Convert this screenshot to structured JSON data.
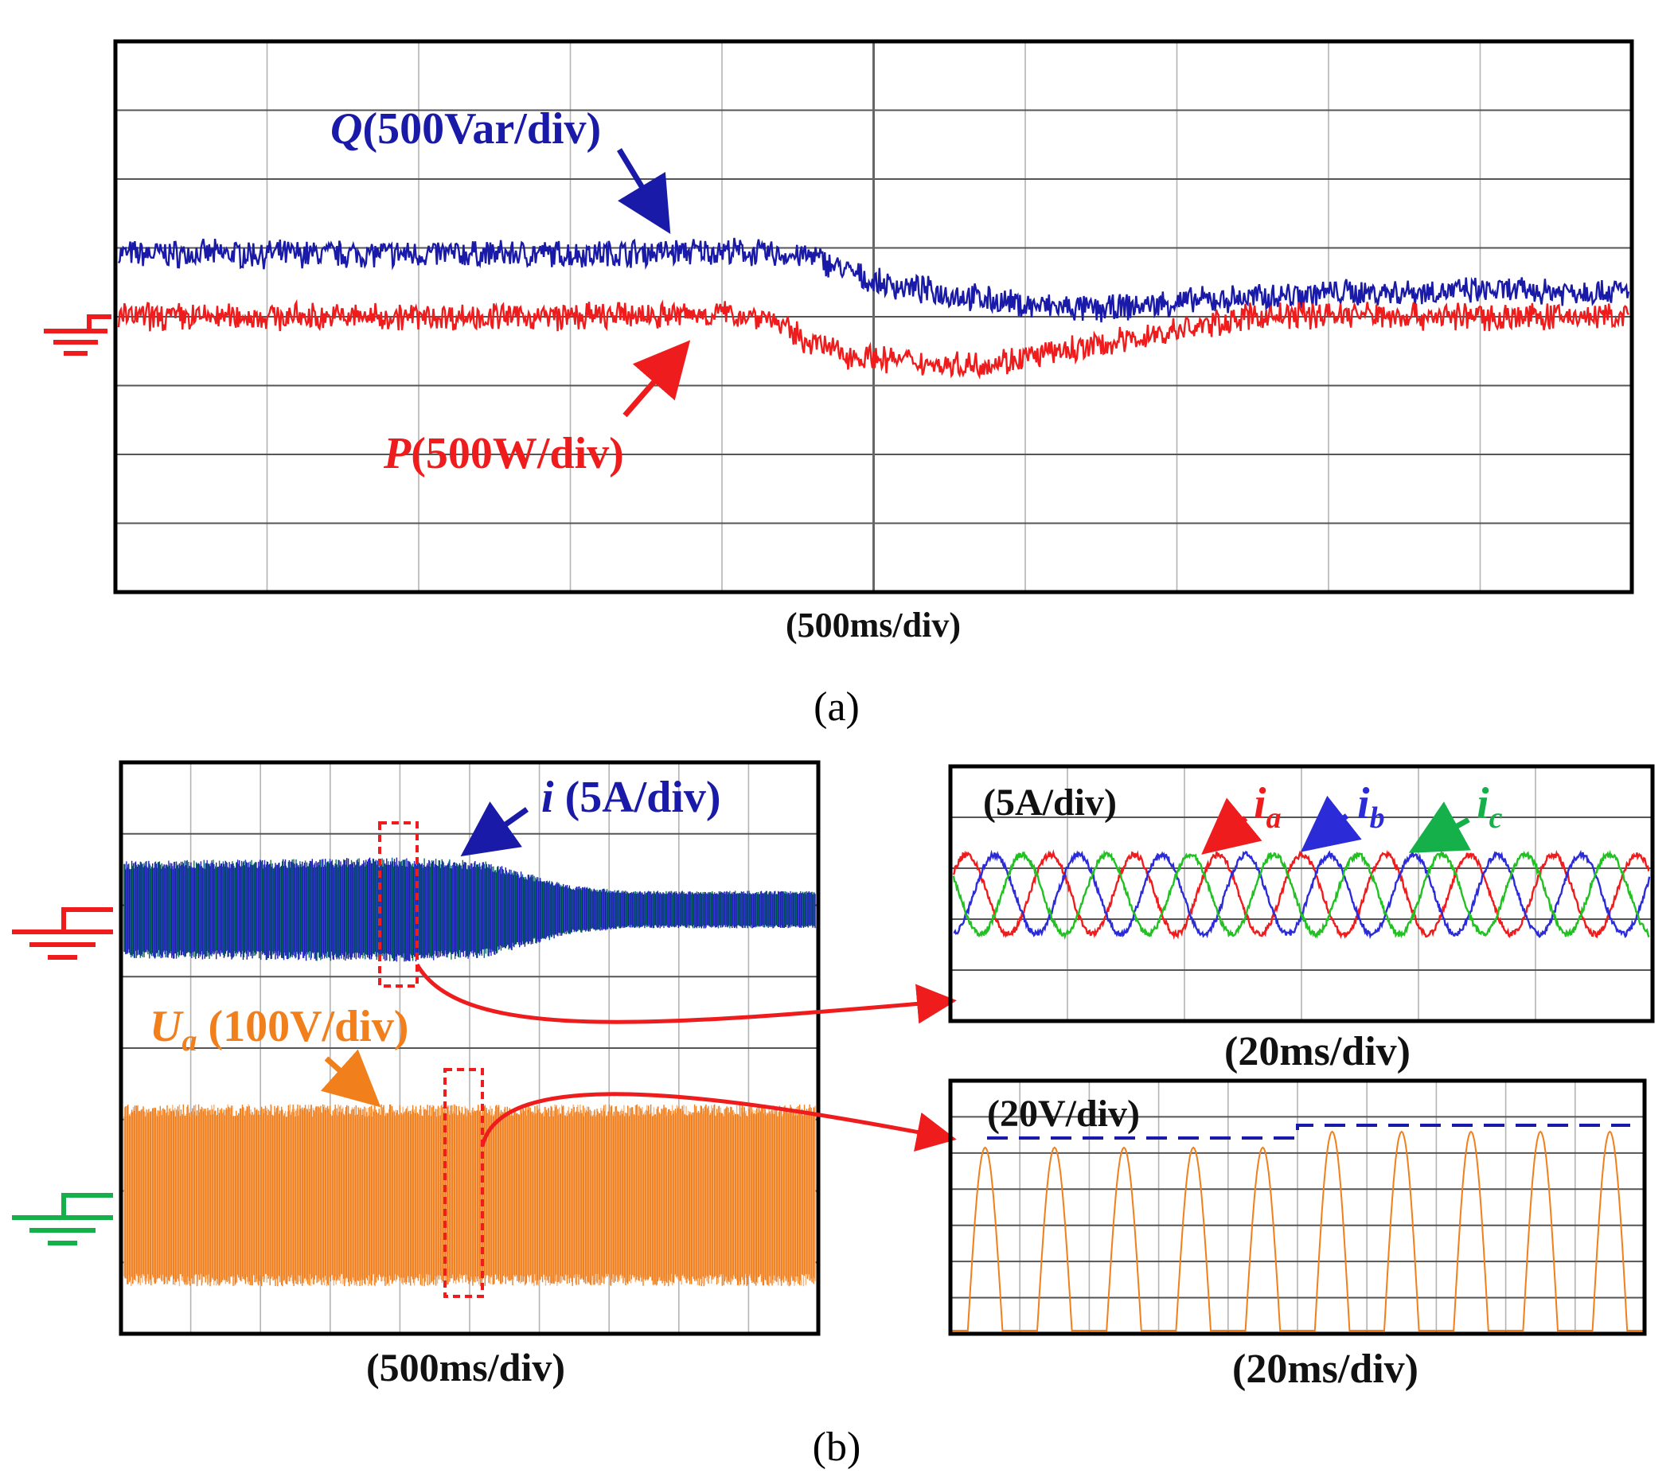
{
  "colors": {
    "blue": "#1a1aa8",
    "red": "#ee1c1c",
    "green": "#16b04a",
    "orange": "#f07f1c",
    "grid": "#b4b4b4",
    "frame": "#000000"
  },
  "panel_a": {
    "caption": "(a)",
    "time_label": "(500ms/div)",
    "q_label": {
      "symbol": "Q",
      "unit": "(500Var/div)"
    },
    "p_label": {
      "symbol": "P",
      "unit": "(500W/div)"
    }
  },
  "panel_b": {
    "caption": "(b)",
    "left": {
      "time_label": "(500ms/div)",
      "i_label": {
        "symbol": "i",
        "unit": " (5A/div)"
      },
      "u_label": {
        "symbol": "U",
        "sub": "a",
        "unit": " (100V/div)"
      }
    },
    "zoom_current": {
      "scale_label": "(5A/div)",
      "time_label": "(20ms/div)",
      "phase_labels": [
        {
          "symbol": "i",
          "sub": "a",
          "color": "#ee1c1c"
        },
        {
          "symbol": "i",
          "sub": "b",
          "color": "#2b2bd8"
        },
        {
          "symbol": "i",
          "sub": "c",
          "color": "#16b04a"
        }
      ]
    },
    "zoom_voltage": {
      "scale_label": "(20V/div)",
      "time_label": "(20ms/div)"
    }
  },
  "chart_data": [
    {
      "type": "line",
      "panel": "a",
      "x_unit": "div (500ms/div)",
      "xlim": [
        0,
        10
      ],
      "ylim": [
        -4,
        4
      ],
      "series": [
        {
          "name": "Q",
          "x": [
            0,
            1,
            2,
            3,
            4,
            4.3,
            4.6,
            5.0,
            5.5,
            6.0,
            6.5,
            7.0,
            8.0,
            9.0,
            10.0
          ],
          "y": [
            1.1,
            1.1,
            1.1,
            1.1,
            1.15,
            1.1,
            1.05,
            0.6,
            0.4,
            0.2,
            0.12,
            0.25,
            0.42,
            0.45,
            0.45
          ]
        },
        {
          "name": "P",
          "x": [
            0,
            1,
            2,
            3,
            4,
            4.3,
            4.5,
            4.8,
            5.0,
            5.5,
            5.8,
            6.0,
            6.5,
            7.0,
            7.5,
            8.0,
            9.0,
            10.0
          ],
          "y": [
            0.0,
            0.0,
            0.0,
            0.0,
            0.05,
            0.0,
            -0.35,
            -0.65,
            -0.72,
            -0.85,
            -0.8,
            -0.72,
            -0.5,
            -0.25,
            0.0,
            0.05,
            0.0,
            0.0
          ]
        }
      ]
    },
    {
      "type": "area",
      "panel": "b-left",
      "x_unit": "div (500ms/div)",
      "xlim": [
        0,
        10
      ],
      "series": [
        {
          "name": "i",
          "envelope_x": [
            0,
            4,
            5.2,
            6.5,
            7.3,
            10
          ],
          "envelope_amplitude_div": [
            0.65,
            0.7,
            0.65,
            0.32,
            0.25,
            0.25
          ]
        },
        {
          "name": "Ua",
          "envelope_x": [
            0,
            10
          ],
          "envelope_amplitude_div": [
            1.25,
            1.25
          ]
        }
      ]
    },
    {
      "type": "line",
      "panel": "b-zoom-current",
      "x_unit": "div (20ms/div)",
      "xlim": [
        0,
        9
      ],
      "series": [
        {
          "name": "ia",
          "amplitude_div": 0.55,
          "cycles": 10,
          "phase_deg": 0
        },
        {
          "name": "ib",
          "amplitude_div": 0.55,
          "cycles": 10,
          "phase_deg": -120
        },
        {
          "name": "ic",
          "amplitude_div": 0.55,
          "cycles": 10,
          "phase_deg": 120
        }
      ]
    },
    {
      "type": "line",
      "panel": "b-zoom-voltage",
      "x_unit": "div (20ms/div)",
      "xlim": [
        0,
        10
      ],
      "series": [
        {
          "name": "Ua rectified",
          "pulses": 10,
          "peak_div": 2.6
        },
        {
          "name": "peak level",
          "x": [
            0,
            5,
            5,
            10
          ],
          "y": [
            2.6,
            2.6,
            2.85,
            2.85
          ]
        }
      ]
    }
  ]
}
